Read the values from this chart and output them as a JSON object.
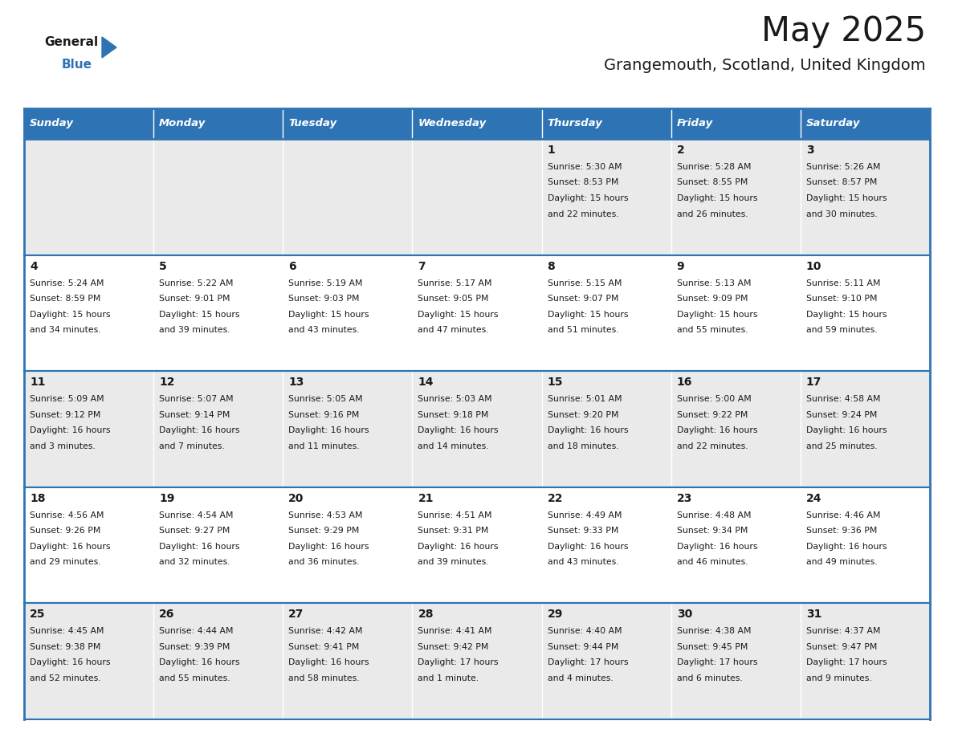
{
  "title": "May 2025",
  "subtitle": "Grangemouth, Scotland, United Kingdom",
  "header_bg": "#2E74B5",
  "header_text_color": "#FFFFFF",
  "days_of_week": [
    "Sunday",
    "Monday",
    "Tuesday",
    "Wednesday",
    "Thursday",
    "Friday",
    "Saturday"
  ],
  "row_bg_even": "#EAEAEA",
  "row_bg_odd": "#FFFFFF",
  "cell_border_color": "#2E74B5",
  "text_color": "#1A1A1A",
  "calendar_data": [
    [
      {
        "day": "",
        "lines": []
      },
      {
        "day": "",
        "lines": []
      },
      {
        "day": "",
        "lines": []
      },
      {
        "day": "",
        "lines": []
      },
      {
        "day": "1",
        "lines": [
          "Sunrise: 5:30 AM",
          "Sunset: 8:53 PM",
          "Daylight: 15 hours",
          "and 22 minutes."
        ]
      },
      {
        "day": "2",
        "lines": [
          "Sunrise: 5:28 AM",
          "Sunset: 8:55 PM",
          "Daylight: 15 hours",
          "and 26 minutes."
        ]
      },
      {
        "day": "3",
        "lines": [
          "Sunrise: 5:26 AM",
          "Sunset: 8:57 PM",
          "Daylight: 15 hours",
          "and 30 minutes."
        ]
      }
    ],
    [
      {
        "day": "4",
        "lines": [
          "Sunrise: 5:24 AM",
          "Sunset: 8:59 PM",
          "Daylight: 15 hours",
          "and 34 minutes."
        ]
      },
      {
        "day": "5",
        "lines": [
          "Sunrise: 5:22 AM",
          "Sunset: 9:01 PM",
          "Daylight: 15 hours",
          "and 39 minutes."
        ]
      },
      {
        "day": "6",
        "lines": [
          "Sunrise: 5:19 AM",
          "Sunset: 9:03 PM",
          "Daylight: 15 hours",
          "and 43 minutes."
        ]
      },
      {
        "day": "7",
        "lines": [
          "Sunrise: 5:17 AM",
          "Sunset: 9:05 PM",
          "Daylight: 15 hours",
          "and 47 minutes."
        ]
      },
      {
        "day": "8",
        "lines": [
          "Sunrise: 5:15 AM",
          "Sunset: 9:07 PM",
          "Daylight: 15 hours",
          "and 51 minutes."
        ]
      },
      {
        "day": "9",
        "lines": [
          "Sunrise: 5:13 AM",
          "Sunset: 9:09 PM",
          "Daylight: 15 hours",
          "and 55 minutes."
        ]
      },
      {
        "day": "10",
        "lines": [
          "Sunrise: 5:11 AM",
          "Sunset: 9:10 PM",
          "Daylight: 15 hours",
          "and 59 minutes."
        ]
      }
    ],
    [
      {
        "day": "11",
        "lines": [
          "Sunrise: 5:09 AM",
          "Sunset: 9:12 PM",
          "Daylight: 16 hours",
          "and 3 minutes."
        ]
      },
      {
        "day": "12",
        "lines": [
          "Sunrise: 5:07 AM",
          "Sunset: 9:14 PM",
          "Daylight: 16 hours",
          "and 7 minutes."
        ]
      },
      {
        "day": "13",
        "lines": [
          "Sunrise: 5:05 AM",
          "Sunset: 9:16 PM",
          "Daylight: 16 hours",
          "and 11 minutes."
        ]
      },
      {
        "day": "14",
        "lines": [
          "Sunrise: 5:03 AM",
          "Sunset: 9:18 PM",
          "Daylight: 16 hours",
          "and 14 minutes."
        ]
      },
      {
        "day": "15",
        "lines": [
          "Sunrise: 5:01 AM",
          "Sunset: 9:20 PM",
          "Daylight: 16 hours",
          "and 18 minutes."
        ]
      },
      {
        "day": "16",
        "lines": [
          "Sunrise: 5:00 AM",
          "Sunset: 9:22 PM",
          "Daylight: 16 hours",
          "and 22 minutes."
        ]
      },
      {
        "day": "17",
        "lines": [
          "Sunrise: 4:58 AM",
          "Sunset: 9:24 PM",
          "Daylight: 16 hours",
          "and 25 minutes."
        ]
      }
    ],
    [
      {
        "day": "18",
        "lines": [
          "Sunrise: 4:56 AM",
          "Sunset: 9:26 PM",
          "Daylight: 16 hours",
          "and 29 minutes."
        ]
      },
      {
        "day": "19",
        "lines": [
          "Sunrise: 4:54 AM",
          "Sunset: 9:27 PM",
          "Daylight: 16 hours",
          "and 32 minutes."
        ]
      },
      {
        "day": "20",
        "lines": [
          "Sunrise: 4:53 AM",
          "Sunset: 9:29 PM",
          "Daylight: 16 hours",
          "and 36 minutes."
        ]
      },
      {
        "day": "21",
        "lines": [
          "Sunrise: 4:51 AM",
          "Sunset: 9:31 PM",
          "Daylight: 16 hours",
          "and 39 minutes."
        ]
      },
      {
        "day": "22",
        "lines": [
          "Sunrise: 4:49 AM",
          "Sunset: 9:33 PM",
          "Daylight: 16 hours",
          "and 43 minutes."
        ]
      },
      {
        "day": "23",
        "lines": [
          "Sunrise: 4:48 AM",
          "Sunset: 9:34 PM",
          "Daylight: 16 hours",
          "and 46 minutes."
        ]
      },
      {
        "day": "24",
        "lines": [
          "Sunrise: 4:46 AM",
          "Sunset: 9:36 PM",
          "Daylight: 16 hours",
          "and 49 minutes."
        ]
      }
    ],
    [
      {
        "day": "25",
        "lines": [
          "Sunrise: 4:45 AM",
          "Sunset: 9:38 PM",
          "Daylight: 16 hours",
          "and 52 minutes."
        ]
      },
      {
        "day": "26",
        "lines": [
          "Sunrise: 4:44 AM",
          "Sunset: 9:39 PM",
          "Daylight: 16 hours",
          "and 55 minutes."
        ]
      },
      {
        "day": "27",
        "lines": [
          "Sunrise: 4:42 AM",
          "Sunset: 9:41 PM",
          "Daylight: 16 hours",
          "and 58 minutes."
        ]
      },
      {
        "day": "28",
        "lines": [
          "Sunrise: 4:41 AM",
          "Sunset: 9:42 PM",
          "Daylight: 17 hours",
          "and 1 minute."
        ]
      },
      {
        "day": "29",
        "lines": [
          "Sunrise: 4:40 AM",
          "Sunset: 9:44 PM",
          "Daylight: 17 hours",
          "and 4 minutes."
        ]
      },
      {
        "day": "30",
        "lines": [
          "Sunrise: 4:38 AM",
          "Sunset: 9:45 PM",
          "Daylight: 17 hours",
          "and 6 minutes."
        ]
      },
      {
        "day": "31",
        "lines": [
          "Sunrise: 4:37 AM",
          "Sunset: 9:47 PM",
          "Daylight: 17 hours",
          "and 9 minutes."
        ]
      }
    ]
  ],
  "logo_general_color": "#1A1A1A",
  "logo_blue_color": "#2E74B5",
  "logo_triangle_color": "#2E74B5"
}
